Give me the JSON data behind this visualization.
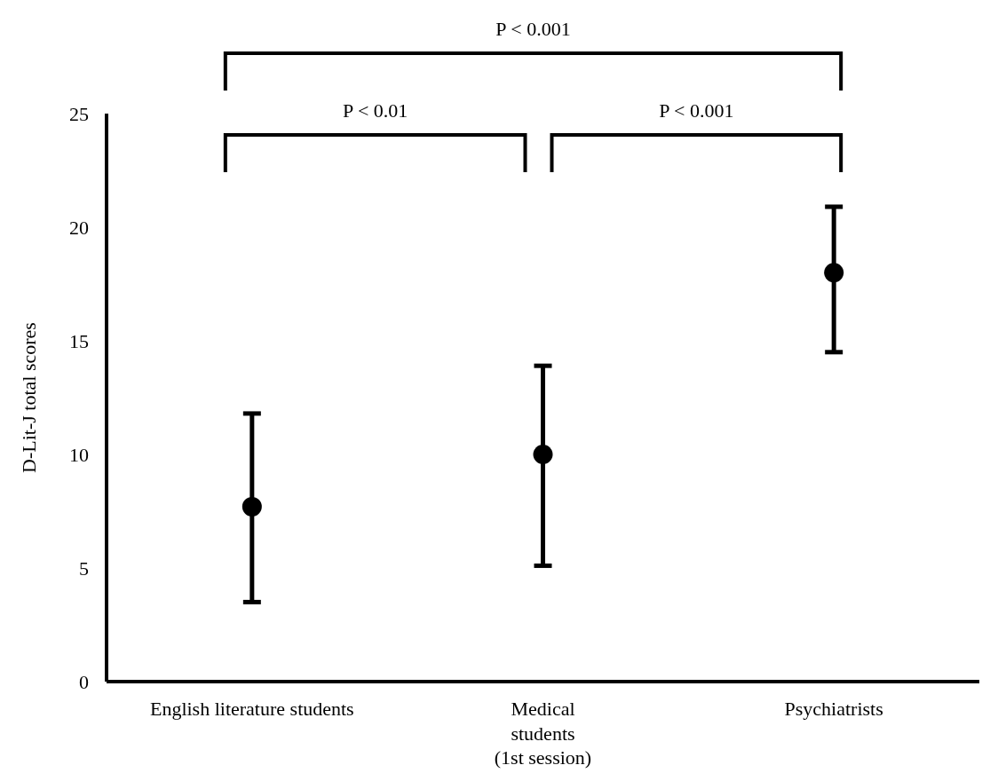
{
  "chart_data": {
    "type": "scatter",
    "ylabel": "D-Lit-J total scores",
    "categories": [
      "English literature students",
      "Medical\nstudents\n(1st session)",
      "Psychiatrists"
    ],
    "values": [
      7.7,
      10.0,
      18.0
    ],
    "errors": [
      [
        3.5,
        11.8
      ],
      [
        5.1,
        13.9
      ],
      [
        14.5,
        20.9
      ]
    ],
    "color": "#000000",
    "marker": "circle",
    "ylim": [
      0,
      25
    ],
    "yticks": [
      0,
      5,
      10,
      15,
      20,
      25
    ],
    "annotations": [
      "P < 0.001",
      "P < 0.01",
      "P < 0.001"
    ]
  }
}
